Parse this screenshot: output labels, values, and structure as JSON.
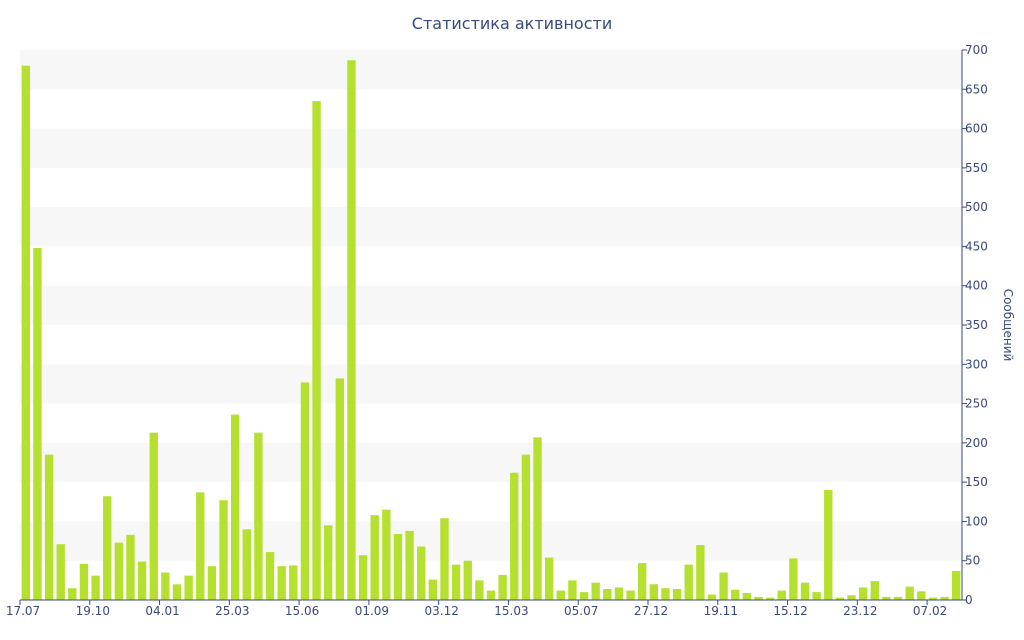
{
  "chart_data": {
    "type": "bar",
    "title": "Статистика активности",
    "xlabel": "",
    "ylabel": "Сообщений",
    "ylim": [
      0,
      700
    ],
    "yticks": [
      0,
      50,
      100,
      150,
      200,
      250,
      300,
      350,
      400,
      450,
      500,
      550,
      600,
      650,
      700
    ],
    "y_axis_side": "right",
    "grid": "horizontal alternating bands",
    "bar_color": "#b5e02f",
    "band_color": "#f7f7f7",
    "text_color": "#3a4a7a",
    "xtick_labels": [
      {
        "label": "17.07",
        "index": 0
      },
      {
        "label": "19.10",
        "index": 6
      },
      {
        "label": "04.01",
        "index": 12
      },
      {
        "label": "25.03",
        "index": 18
      },
      {
        "label": "15.06",
        "index": 24
      },
      {
        "label": "01.09",
        "index": 30
      },
      {
        "label": "03.12",
        "index": 36
      },
      {
        "label": "15.03",
        "index": 42
      },
      {
        "label": "05.07",
        "index": 48
      },
      {
        "label": "27.12",
        "index": 54
      },
      {
        "label": "19.11",
        "index": 60
      },
      {
        "label": "15.12",
        "index": 66
      },
      {
        "label": "23.12",
        "index": 72
      },
      {
        "label": "07.02",
        "index": 78
      }
    ],
    "values": [
      680,
      448,
      185,
      71,
      15,
      46,
      31,
      132,
      73,
      83,
      49,
      213,
      35,
      20,
      31,
      137,
      43,
      127,
      236,
      90,
      213,
      61,
      43,
      44,
      277,
      635,
      95,
      282,
      687,
      57,
      108,
      115,
      84,
      88,
      68,
      26,
      104,
      45,
      50,
      25,
      12,
      32,
      162,
      185,
      207,
      54,
      12,
      25,
      10,
      22,
      14,
      16,
      12,
      47,
      20,
      15,
      14,
      45,
      70,
      7,
      35,
      13,
      9,
      4,
      3,
      12,
      53,
      22,
      10,
      140,
      3,
      6,
      16,
      24,
      4,
      4,
      17,
      11,
      3,
      4,
      37
    ]
  }
}
